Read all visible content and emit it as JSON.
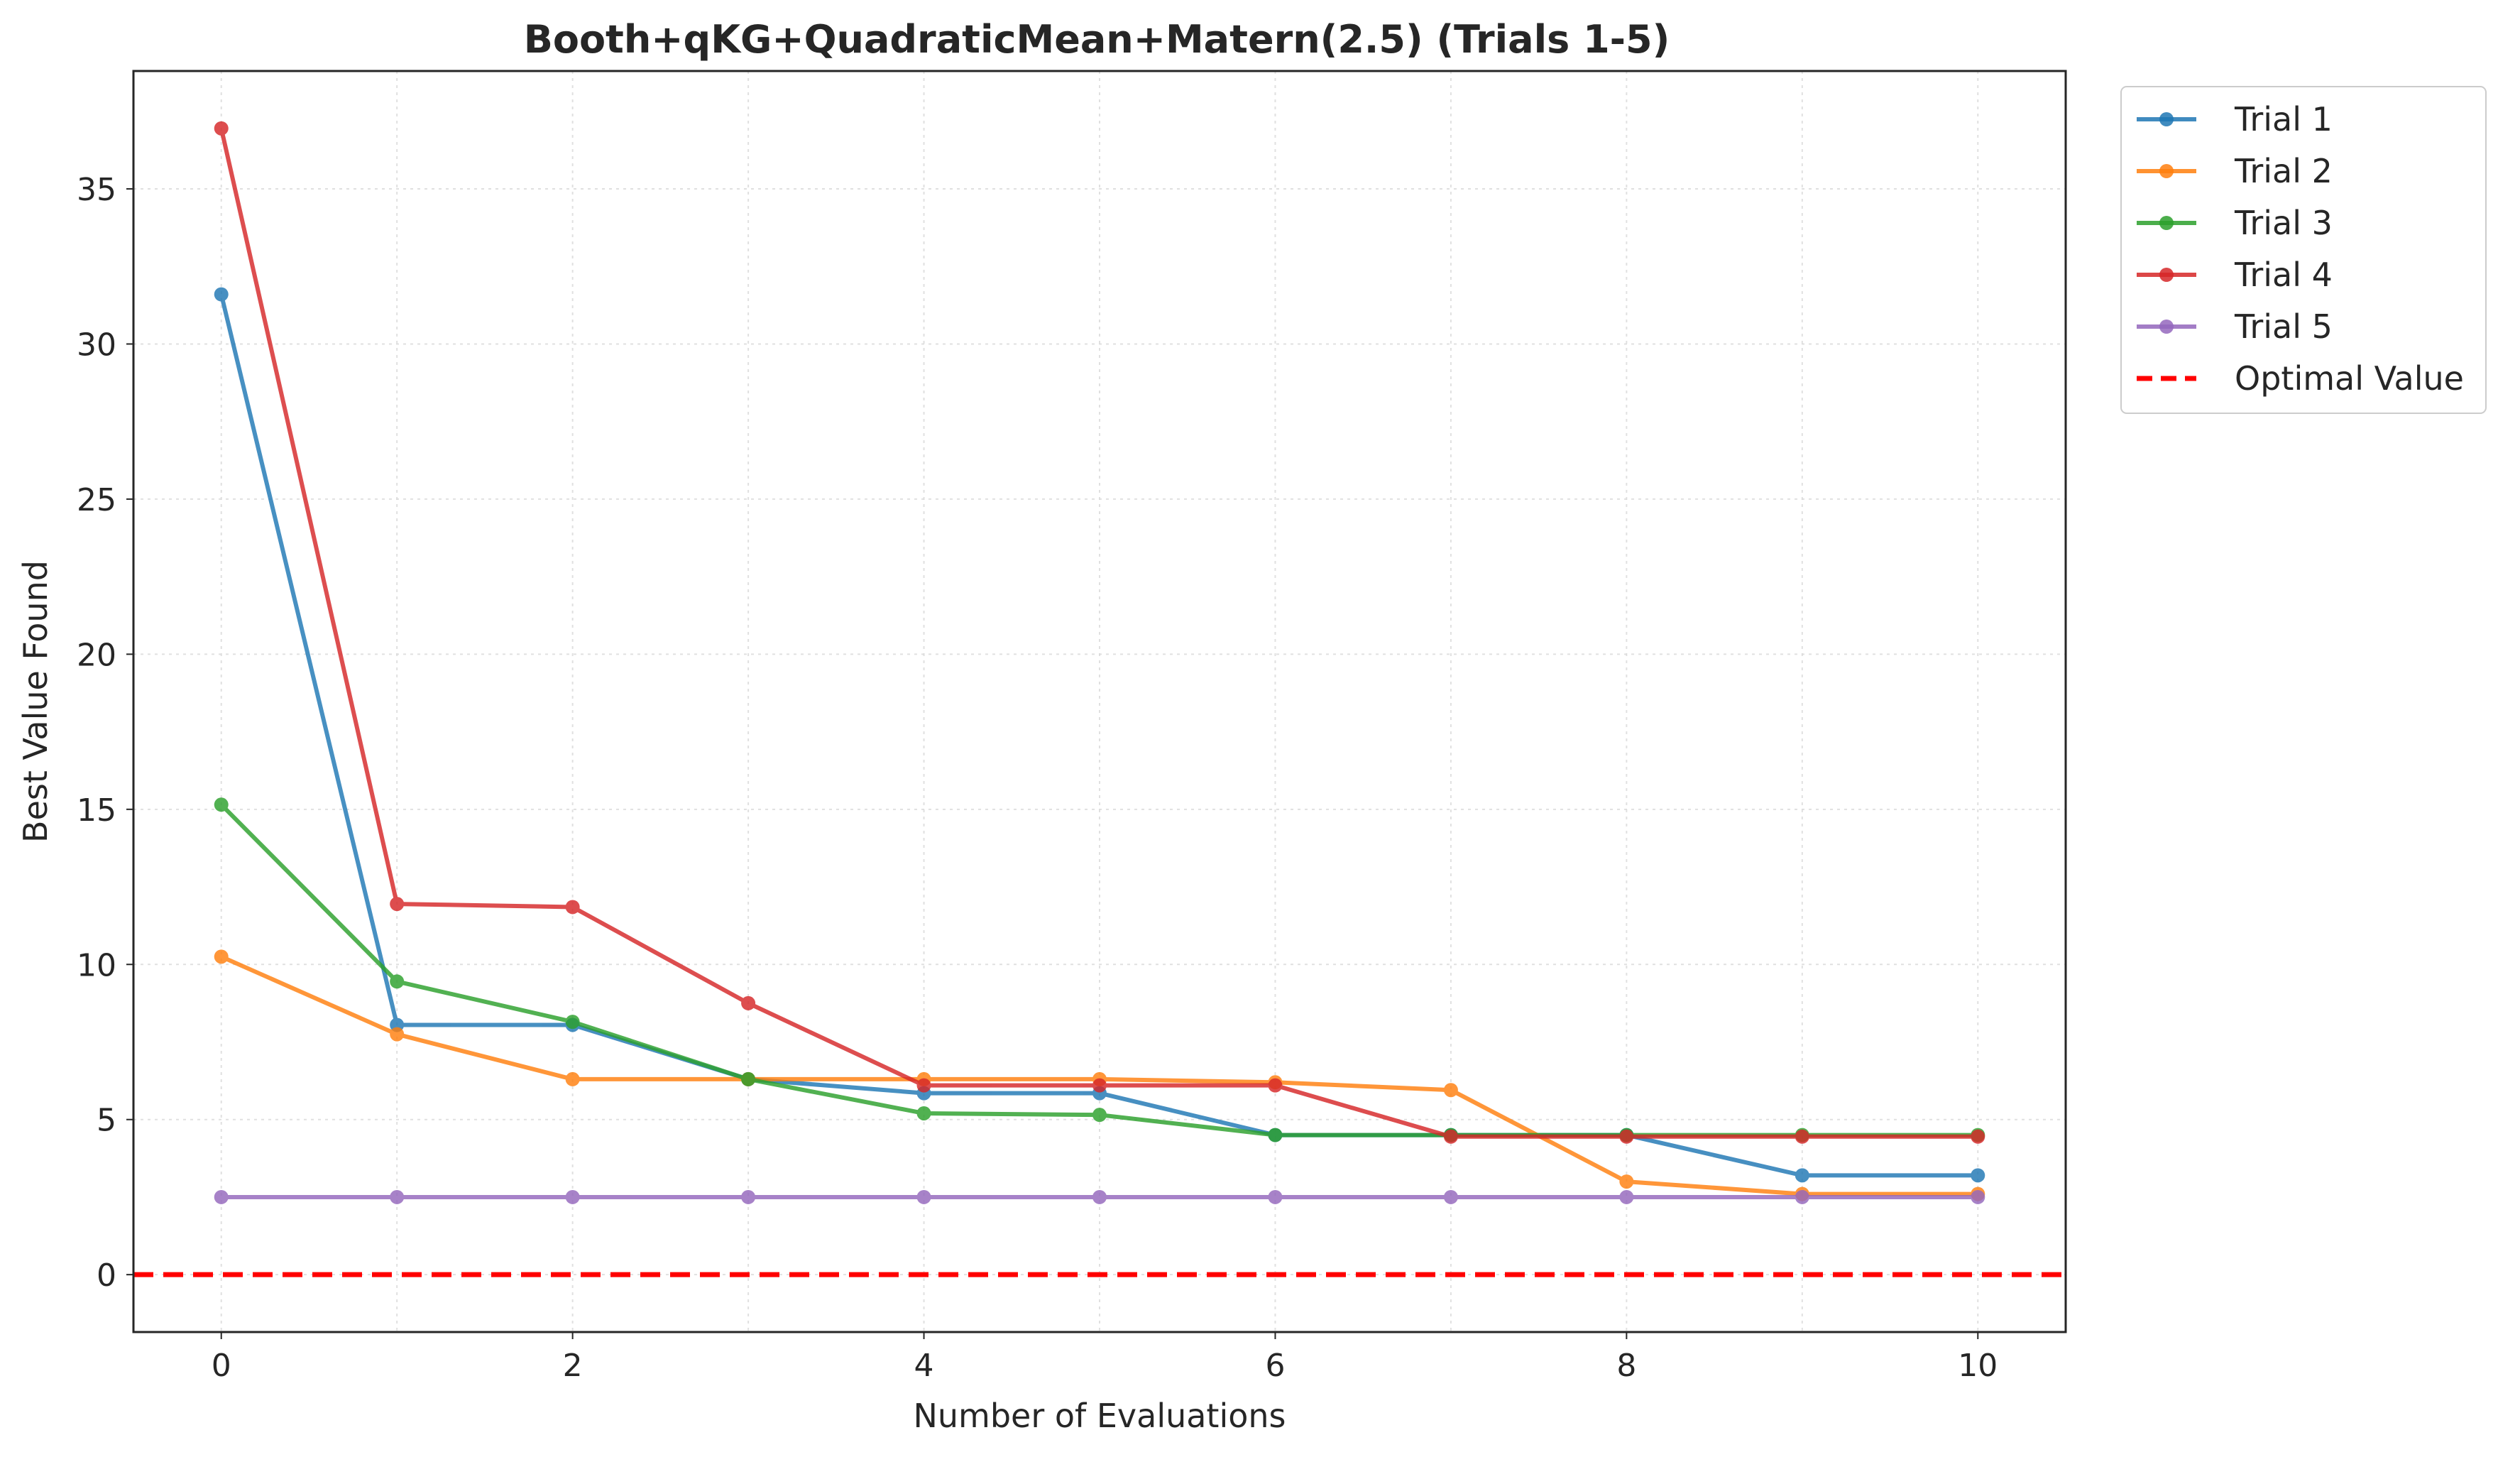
{
  "chart_data": {
    "type": "line",
    "title": "Booth+qKG+QuadraticMean+Matern(2.5) (Trials 1-5)",
    "xlabel": "Number of Evaluations",
    "ylabel": "Best Value Found",
    "xlim": [
      -0.5,
      10.5
    ],
    "ylim": [
      -1.85,
      38.8
    ],
    "xticks": [
      0,
      2,
      4,
      6,
      8,
      10
    ],
    "yticks": [
      0,
      5,
      10,
      15,
      20,
      25,
      30,
      35
    ],
    "grid": true,
    "legend_position": "outside-top-right",
    "x": [
      0,
      1,
      2,
      3,
      4,
      5,
      6,
      7,
      8,
      9,
      10
    ],
    "series": [
      {
        "name": "Trial 1",
        "color": "#1f77b4",
        "values": [
          31.6,
          8.05,
          8.05,
          6.3,
          5.85,
          5.85,
          4.5,
          4.5,
          4.5,
          3.2,
          3.2
        ]
      },
      {
        "name": "Trial 2",
        "color": "#ff7f0e",
        "values": [
          10.25,
          7.75,
          6.3,
          6.3,
          6.3,
          6.3,
          6.2,
          5.95,
          3.0,
          2.6,
          2.6
        ]
      },
      {
        "name": "Trial 3",
        "color": "#2ca02c",
        "values": [
          15.15,
          9.45,
          8.15,
          6.3,
          5.2,
          5.15,
          4.5,
          4.5,
          4.5,
          4.5,
          4.5
        ]
      },
      {
        "name": "Trial 4",
        "color": "#d62728",
        "values": [
          36.95,
          11.95,
          11.85,
          8.75,
          6.1,
          6.1,
          6.1,
          4.45,
          4.45,
          4.45,
          4.45
        ]
      },
      {
        "name": "Trial 5",
        "color": "#9467bd",
        "values": [
          2.5,
          2.5,
          2.5,
          2.5,
          2.5,
          2.5,
          2.5,
          2.5,
          2.5,
          2.5,
          2.5
        ]
      }
    ],
    "reference_line": {
      "name": "Optimal Value",
      "value": 0,
      "color": "#ff0000",
      "style": "dashed"
    }
  }
}
